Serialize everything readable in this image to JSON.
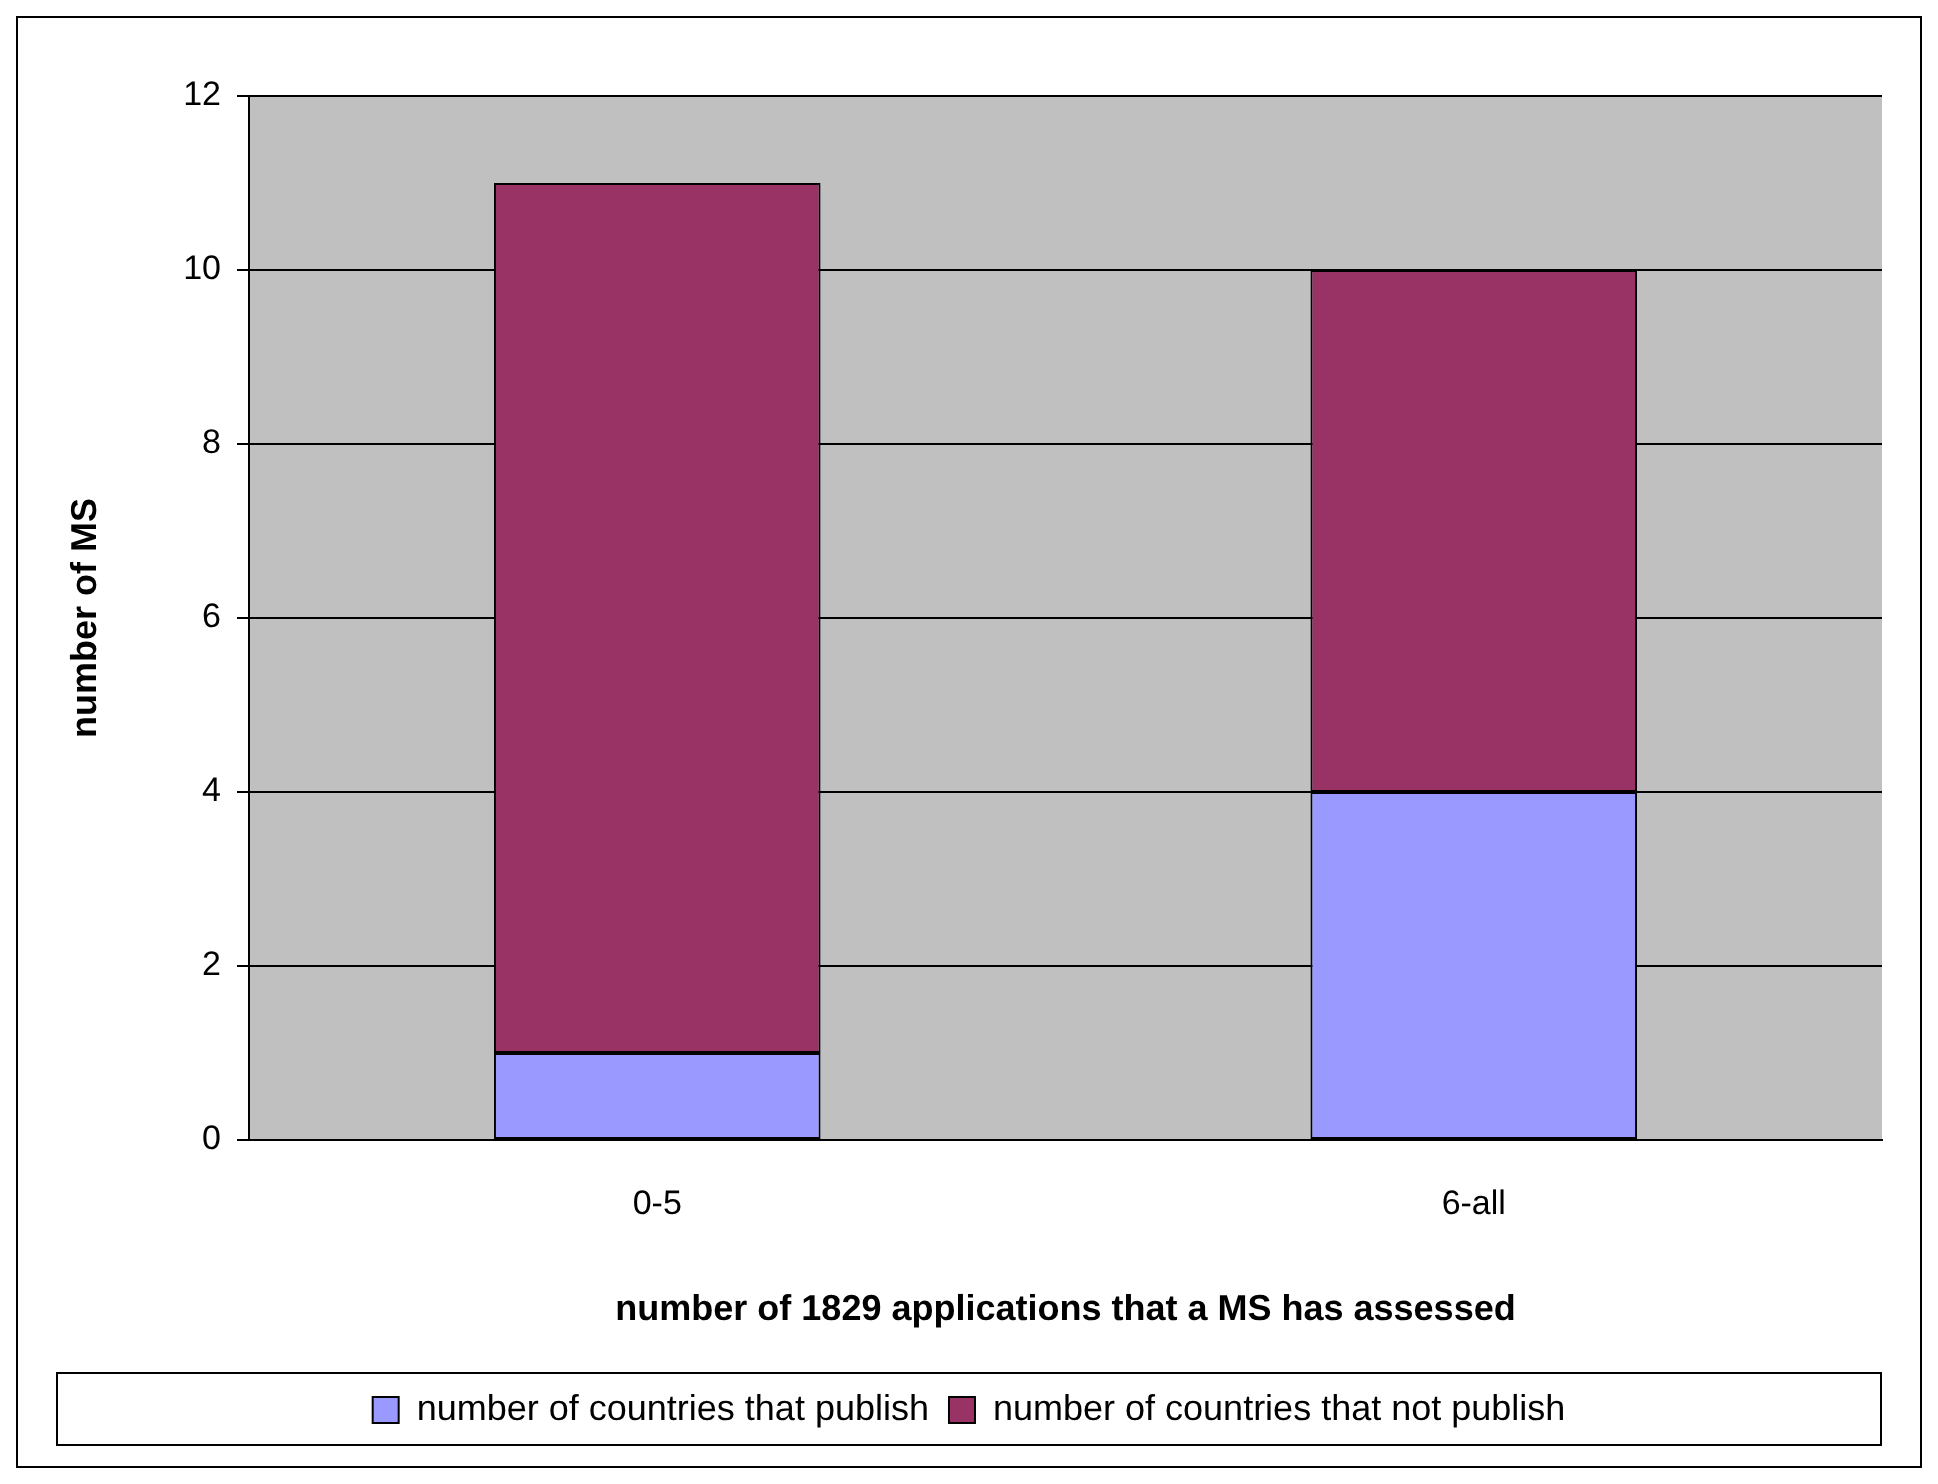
{
  "chart_data": {
    "type": "bar",
    "xlabel": "number of 1829 applications that a MS has assessed",
    "ylabel": "number of MS",
    "categories": [
      "0-5",
      "6-all"
    ],
    "series": [
      {
        "name": "number of countries that publish",
        "color": "#9999ff",
        "values": [
          1,
          4
        ]
      },
      {
        "name": "number of countries that not publish",
        "color": "#993366",
        "values": [
          10,
          6
        ]
      }
    ],
    "stacked": true,
    "ylim": [
      0,
      12
    ],
    "yticks": [
      0,
      2,
      4,
      6,
      8,
      10,
      12
    ],
    "grid": "y",
    "legend": "bottom"
  }
}
